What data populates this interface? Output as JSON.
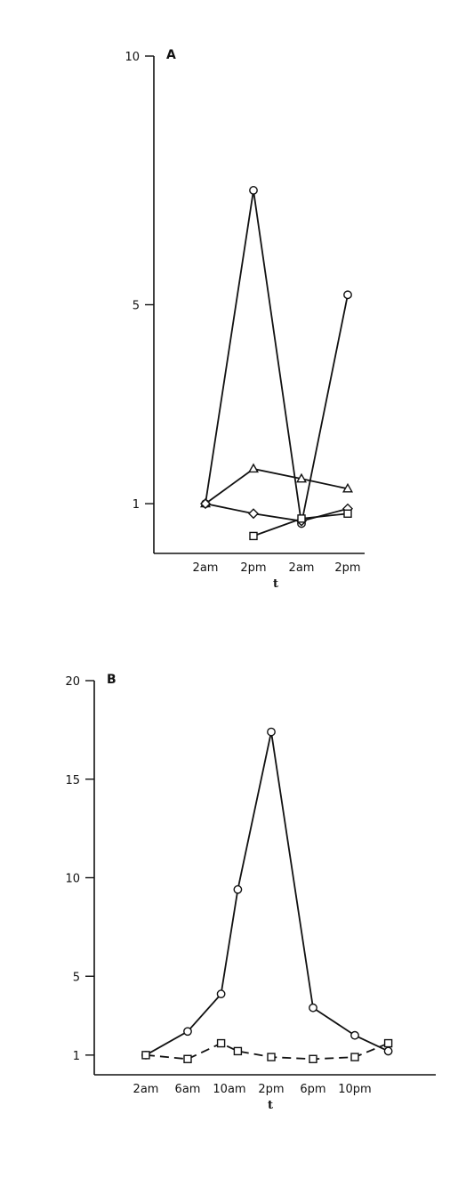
{
  "chart_data": [
    {
      "type": "line",
      "panel_label": "A",
      "title": "",
      "xlabel": "t",
      "ylabel": "",
      "categories": [
        "2am",
        "2pm",
        "2am",
        "2pm"
      ],
      "ylim": [
        0,
        10
      ],
      "yticks": [
        1,
        5,
        10
      ],
      "grid": false,
      "series": [
        {
          "marker": "circle",
          "style": "solid",
          "values": [
            1.0,
            7.3,
            0.6,
            5.2
          ]
        },
        {
          "marker": "triangle",
          "style": "solid",
          "values": [
            1.0,
            1.7,
            1.5,
            1.3
          ]
        },
        {
          "marker": "diamond",
          "style": "solid",
          "values": [
            1.0,
            0.8,
            0.65,
            0.9
          ]
        },
        {
          "marker": "square",
          "style": "solid",
          "values": [
            null,
            0.35,
            0.7,
            0.8
          ]
        }
      ]
    },
    {
      "type": "line",
      "panel_label": "B",
      "title": "",
      "xlabel": "t",
      "ylabel": "",
      "categories": [
        "2am",
        "6am",
        "10am",
        "2pm",
        "6pm",
        "10pm"
      ],
      "x": [
        0,
        1,
        1.8,
        2.2,
        3,
        4,
        5,
        5.8
      ],
      "ylim": [
        0,
        20
      ],
      "yticks": [
        1,
        5,
        10,
        15,
        20
      ],
      "grid": false,
      "series": [
        {
          "marker": "circle",
          "style": "solid",
          "values": [
            1.0,
            2.2,
            4.1,
            9.4,
            17.4,
            3.4,
            2.0,
            1.2
          ]
        },
        {
          "marker": "square",
          "style": "dashed",
          "values": [
            1.0,
            0.8,
            1.6,
            1.2,
            0.9,
            0.8,
            0.9,
            1.6
          ]
        }
      ]
    }
  ]
}
